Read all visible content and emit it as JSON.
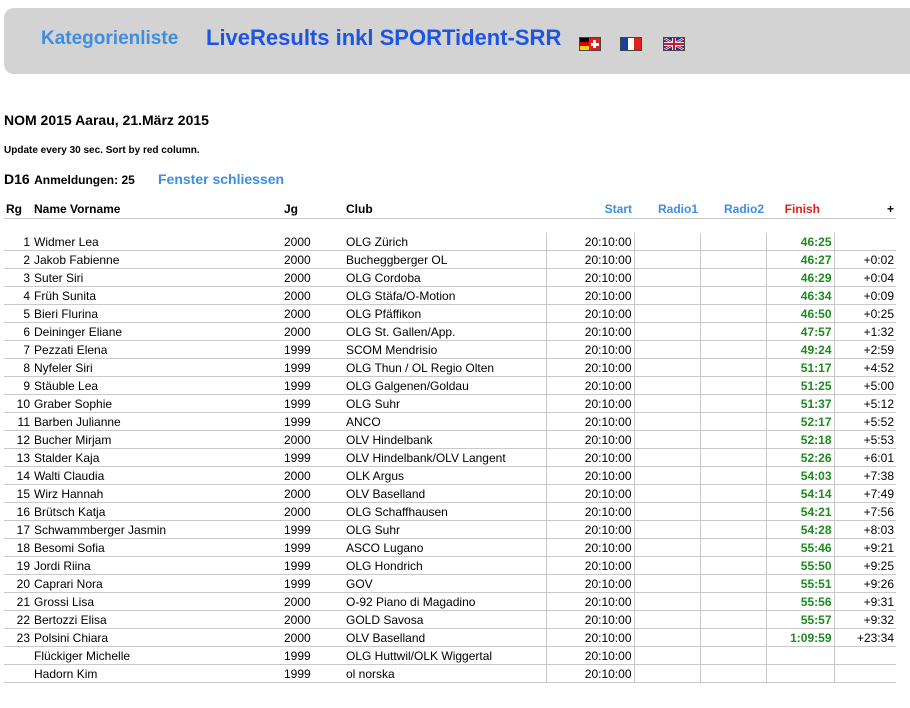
{
  "header": {
    "category_list_link": "Kategorienliste",
    "title": "LiveResults inkl SPORTident-SRR",
    "flags": [
      "flag-de-ch",
      "flag-fr",
      "flag-uk"
    ]
  },
  "event": {
    "title": "NOM 2015 Aarau, 21.März 2015",
    "update_note": "Update every 30 sec. Sort by red column.",
    "category": "D16",
    "registrations_label": "Anmeldungen: 25",
    "close_window_link": "Fenster schliessen"
  },
  "table": {
    "headers": {
      "rank": "Rg",
      "name": "Name Vorname",
      "year": "Jg",
      "club": "Club",
      "start": "Start",
      "radio1": "Radio1",
      "radio2": "Radio2",
      "finish": "Finish",
      "diff": "+"
    },
    "rows": [
      {
        "rank": "1",
        "name": "Widmer Lea",
        "year": "2000",
        "club": "OLG Zürich",
        "start": "20:10:00",
        "finish": "46:25",
        "diff": ""
      },
      {
        "rank": "2",
        "name": "Jakob Fabienne",
        "year": "2000",
        "club": "Bucheggberger OL",
        "start": "20:10:00",
        "finish": "46:27",
        "diff": "+0:02"
      },
      {
        "rank": "3",
        "name": "Suter Siri",
        "year": "2000",
        "club": "OLG Cordoba",
        "start": "20:10:00",
        "finish": "46:29",
        "diff": "+0:04"
      },
      {
        "rank": "4",
        "name": "Früh Sunita",
        "year": "2000",
        "club": "OLG Stäfa/O-Motion",
        "start": "20:10:00",
        "finish": "46:34",
        "diff": "+0:09"
      },
      {
        "rank": "5",
        "name": "Bieri Flurina",
        "year": "2000",
        "club": "OLG Pfäffikon",
        "start": "20:10:00",
        "finish": "46:50",
        "diff": "+0:25"
      },
      {
        "rank": "6",
        "name": "Deininger Eliane",
        "year": "2000",
        "club": "OLG St. Gallen/App.",
        "start": "20:10:00",
        "finish": "47:57",
        "diff": "+1:32"
      },
      {
        "rank": "7",
        "name": "Pezzati Elena",
        "year": "1999",
        "club": "SCOM Mendrisio",
        "start": "20:10:00",
        "finish": "49:24",
        "diff": "+2:59"
      },
      {
        "rank": "8",
        "name": "Nyfeler Siri",
        "year": "1999",
        "club": "OLG Thun / OL Regio Olten",
        "start": "20:10:00",
        "finish": "51:17",
        "diff": "+4:52"
      },
      {
        "rank": "9",
        "name": "Stäuble Lea",
        "year": "1999",
        "club": "OLG Galgenen/Goldau",
        "start": "20:10:00",
        "finish": "51:25",
        "diff": "+5:00"
      },
      {
        "rank": "10",
        "name": "Graber Sophie",
        "year": "1999",
        "club": "OLG Suhr",
        "start": "20:10:00",
        "finish": "51:37",
        "diff": "+5:12"
      },
      {
        "rank": "11",
        "name": "Barben Julianne",
        "year": "1999",
        "club": "ANCO",
        "start": "20:10:00",
        "finish": "52:17",
        "diff": "+5:52"
      },
      {
        "rank": "12",
        "name": "Bucher Mirjam",
        "year": "2000",
        "club": "OLV Hindelbank",
        "start": "20:10:00",
        "finish": "52:18",
        "diff": "+5:53"
      },
      {
        "rank": "13",
        "name": "Stalder Kaja",
        "year": "1999",
        "club": "OLV Hindelbank/OLV Langent",
        "start": "20:10:00",
        "finish": "52:26",
        "diff": "+6:01"
      },
      {
        "rank": "14",
        "name": "Walti Claudia",
        "year": "2000",
        "club": "OLK Argus",
        "start": "20:10:00",
        "finish": "54:03",
        "diff": "+7:38"
      },
      {
        "rank": "15",
        "name": "Wirz Hannah",
        "year": "2000",
        "club": "OLV Baselland",
        "start": "20:10:00",
        "finish": "54:14",
        "diff": "+7:49"
      },
      {
        "rank": "16",
        "name": "Brütsch Katja",
        "year": "2000",
        "club": "OLG Schaffhausen",
        "start": "20:10:00",
        "finish": "54:21",
        "diff": "+7:56"
      },
      {
        "rank": "17",
        "name": "Schwammberger Jasmin",
        "year": "1999",
        "club": "OLG Suhr",
        "start": "20:10:00",
        "finish": "54:28",
        "diff": "+8:03"
      },
      {
        "rank": "18",
        "name": "Besomi Sofia",
        "year": "1999",
        "club": "ASCO Lugano",
        "start": "20:10:00",
        "finish": "55:46",
        "diff": "+9:21"
      },
      {
        "rank": "19",
        "name": "Jordi Riina",
        "year": "1999",
        "club": "OLG Hondrich",
        "start": "20:10:00",
        "finish": "55:50",
        "diff": "+9:25"
      },
      {
        "rank": "20",
        "name": "Caprari Nora",
        "year": "1999",
        "club": "GOV",
        "start": "20:10:00",
        "finish": "55:51",
        "diff": "+9:26"
      },
      {
        "rank": "21",
        "name": "Grossi Lisa",
        "year": "2000",
        "club": "O-92 Piano di Magadino",
        "start": "20:10:00",
        "finish": "55:56",
        "diff": "+9:31"
      },
      {
        "rank": "22",
        "name": "Bertozzi Elisa",
        "year": "2000",
        "club": "GOLD Savosa",
        "start": "20:10:00",
        "finish": "55:57",
        "diff": "+9:32"
      },
      {
        "rank": "23",
        "name": "Polsini Chiara",
        "year": "2000",
        "club": "OLV Baselland",
        "start": "20:10:00",
        "finish": "1:09:59",
        "diff": "+23:34"
      },
      {
        "rank": "",
        "name": "Flückiger Michelle",
        "year": "1999",
        "club": "OLG Huttwil/OLK Wiggertal",
        "start": "20:10:00",
        "finish": "",
        "diff": ""
      },
      {
        "rank": "",
        "name": "Hadorn Kim",
        "year": "1999",
        "club": "ol norska",
        "start": "20:10:00",
        "finish": "",
        "diff": ""
      }
    ]
  },
  "colors": {
    "link_blue": "#3d8ede",
    "title_blue": "#1d55e0",
    "sort_red": "#e0201b",
    "finish_green": "#1f8a1f",
    "header_bg": "#d3d3d3"
  }
}
